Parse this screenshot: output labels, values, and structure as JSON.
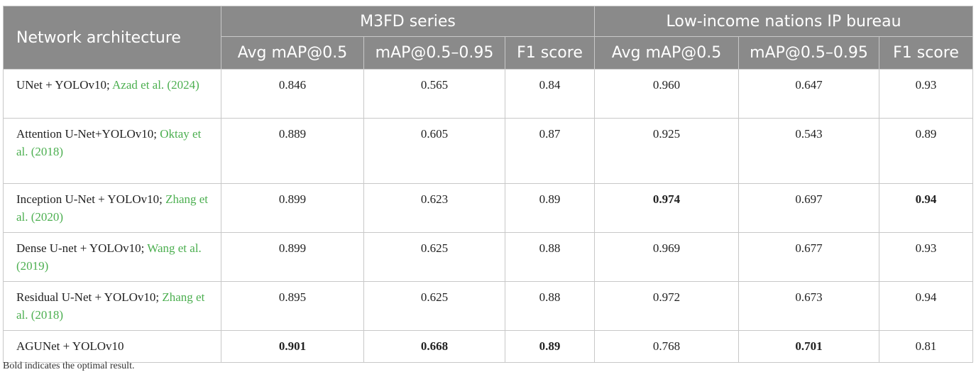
{
  "header": {
    "network_architecture": "Network architecture",
    "groups": [
      "M3FD series",
      "Low-income nations IP bureau"
    ],
    "columns": [
      "Avg mAP@0.5",
      "mAP@0.5–0.95",
      "F1 score",
      "Avg mAP@0.5",
      "mAP@0.5–0.95",
      "F1 score"
    ]
  },
  "rows": [
    {
      "name_lines": [
        "UNet + YOLOv10; "
      ],
      "name_pre": "UNet + YOLOv10; ",
      "cite": "Azad et al. (2024)",
      "values": [
        "0.846",
        "0.565",
        "0.84",
        "0.960",
        "0.647",
        "0.93"
      ],
      "bold": [
        false,
        false,
        false,
        false,
        false,
        false
      ]
    },
    {
      "name_pre": "Attention U-Net+YOLOv10; ",
      "cite": "Oktay et al. (2018)",
      "values": [
        "0.889",
        "0.605",
        "0.87",
        "0.925",
        "0.543",
        "0.89"
      ],
      "bold": [
        false,
        false,
        false,
        false,
        false,
        false
      ]
    },
    {
      "name_pre": "Inception U-Net + YOLOv10; ",
      "cite": "Zhang et al. (2020)",
      "values": [
        "0.899",
        "0.623",
        "0.89",
        "0.974",
        "0.697",
        "0.94"
      ],
      "bold": [
        false,
        false,
        false,
        true,
        false,
        true
      ]
    },
    {
      "name_pre": "Dense U-net + YOLOv10; ",
      "cite": "Wang et al. (2019)",
      "values": [
        "0.899",
        "0.625",
        "0.88",
        "0.969",
        "0.677",
        "0.93"
      ],
      "bold": [
        false,
        false,
        false,
        false,
        false,
        false
      ]
    },
    {
      "name_pre": "Residual U-Net + YOLOv10; ",
      "cite": "Zhang et al. (2018)",
      "values": [
        "0.895",
        "0.625",
        "0.88",
        "0.972",
        "0.673",
        "0.94"
      ],
      "bold": [
        false,
        false,
        false,
        false,
        false,
        false
      ]
    },
    {
      "name_pre": "AGUNet + YOLOv10",
      "cite": "",
      "values": [
        "0.901",
        "0.668",
        "0.89",
        "0.768",
        "0.701",
        "0.81"
      ],
      "bold": [
        true,
        true,
        true,
        false,
        true,
        false
      ]
    }
  ],
  "footnote": "Bold indicates the optimal result.",
  "colors": {
    "header_bg": "#8a8a8a",
    "citation": "#4caf50",
    "border": "#c8c8c8"
  }
}
